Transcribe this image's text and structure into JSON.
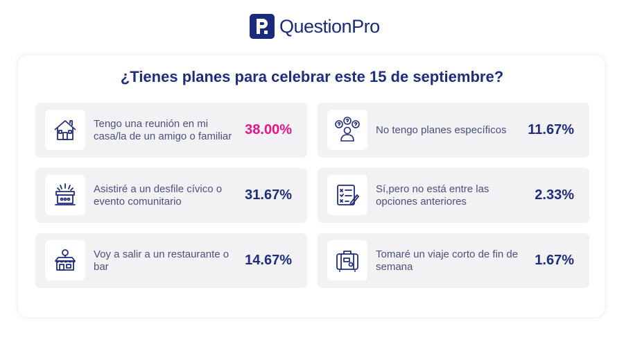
{
  "brand": {
    "name": "QuestionPro",
    "mark": "P"
  },
  "chart_data": {
    "type": "table",
    "title": "¿Tienes planes para celebrar este 15 de septiembre?",
    "rows": [
      {
        "label": "Tengo una reunión en mi casa/la de un amigo o familiar",
        "value": 38.0,
        "display": "38.00%",
        "icon": "house-icon",
        "highlight": true
      },
      {
        "label": "Asistiré a un desfile cívico o evento comunitario",
        "value": 31.67,
        "display": "31.67%",
        "icon": "parade-float-icon",
        "highlight": false
      },
      {
        "label": "Voy a salir a un restaurante o bar",
        "value": 14.67,
        "display": "14.67%",
        "icon": "restaurant-icon",
        "highlight": false
      },
      {
        "label": "No tengo planes específicos",
        "value": 11.67,
        "display": "11.67%",
        "icon": "person-question-icon",
        "highlight": false
      },
      {
        "label": "Sí,pero no está entre las opciones anteriores",
        "value": 2.33,
        "display": "2.33%",
        "icon": "checklist-icon",
        "highlight": false
      },
      {
        "label": "Tomaré un viaje corto de fin de semana",
        "value": 1.67,
        "display": "1.67%",
        "icon": "suitcase-icon",
        "highlight": false
      }
    ],
    "colors": {
      "primary": "#1f2d7a",
      "highlight": "#e6148c",
      "item_bg": "#f2f2f4",
      "label": "#4a5080"
    }
  }
}
